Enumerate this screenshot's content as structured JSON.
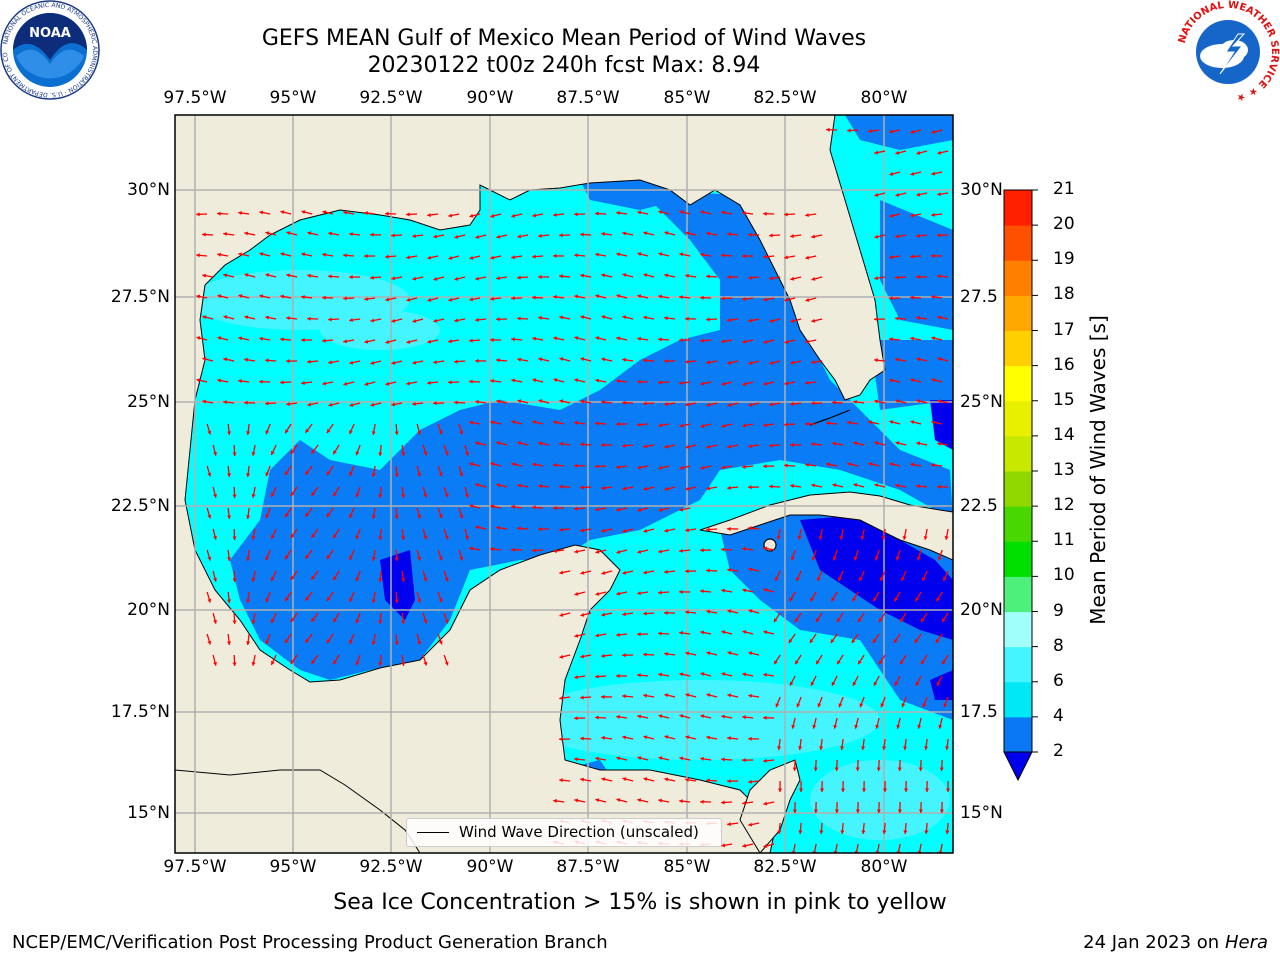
{
  "title_line1": "GEFS MEAN Gulf of Mexico Mean Period of Wind Waves",
  "title_line2": "20230122 t00z 240h fcst   Max: 8.94",
  "lon_ticks": [
    "97.5°W",
    "95°W",
    "92.5°W",
    "90°W",
    "87.5°W",
    "85°W",
    "82.5°W",
    "80°W"
  ],
  "lat_ticks_left": [
    "30°N",
    "27.5°N",
    "25°N",
    "22.5°N",
    "20°N",
    "17.5°N",
    "15°N"
  ],
  "lat_ticks_right": [
    "30°N",
    "27.5",
    "25°N",
    "22.5",
    "20°N",
    "17.5",
    "15°N"
  ],
  "legend": {
    "label": "Wind Wave Direction (unscaled)"
  },
  "colorbar": {
    "title": "Mean Period of Wind Waves [s]",
    "tick_labels": [
      "2",
      "4",
      "6",
      "8",
      "9",
      "10",
      "11",
      "12",
      "13",
      "14",
      "15",
      "16",
      "17",
      "18",
      "19",
      "20",
      "21"
    ],
    "colors": [
      "#0a78f5",
      "#00e8f5",
      "#44f5ff",
      "#a0fff8",
      "#4df07a",
      "#00e000",
      "#48d800",
      "#90d800",
      "#c8e800",
      "#e8f000",
      "#ffff00",
      "#ffd000",
      "#ffa800",
      "#ff8000",
      "#ff5000",
      "#ff2000",
      "#ff0000"
    ],
    "under_color": "#0000ee"
  },
  "map_colors": {
    "land": "#efecdc",
    "ocean_4_6": "#00ffff",
    "ocean_2_4": "#0a7cf5",
    "ocean_lt2": "#0000ee",
    "arrows": "#ff0000",
    "grid": "#b0b0b0"
  },
  "note": "Sea Ice Concentration > 15% is shown in pink to yellow",
  "credit": "NCEP/EMC/Verification Post Processing Product Generation Branch",
  "date": "24 Jan 2023 on",
  "machine": "Hera",
  "logo_left": {
    "text": "NOAA",
    "ring_text": "NATIONAL OCEANIC AND ATMOSPHERIC ADMINISTRATION · U.S. DEPARTMENT OF COMMERCE"
  },
  "logo_right": {
    "ring_text": "NATIONAL WEATHER SERVICE"
  }
}
